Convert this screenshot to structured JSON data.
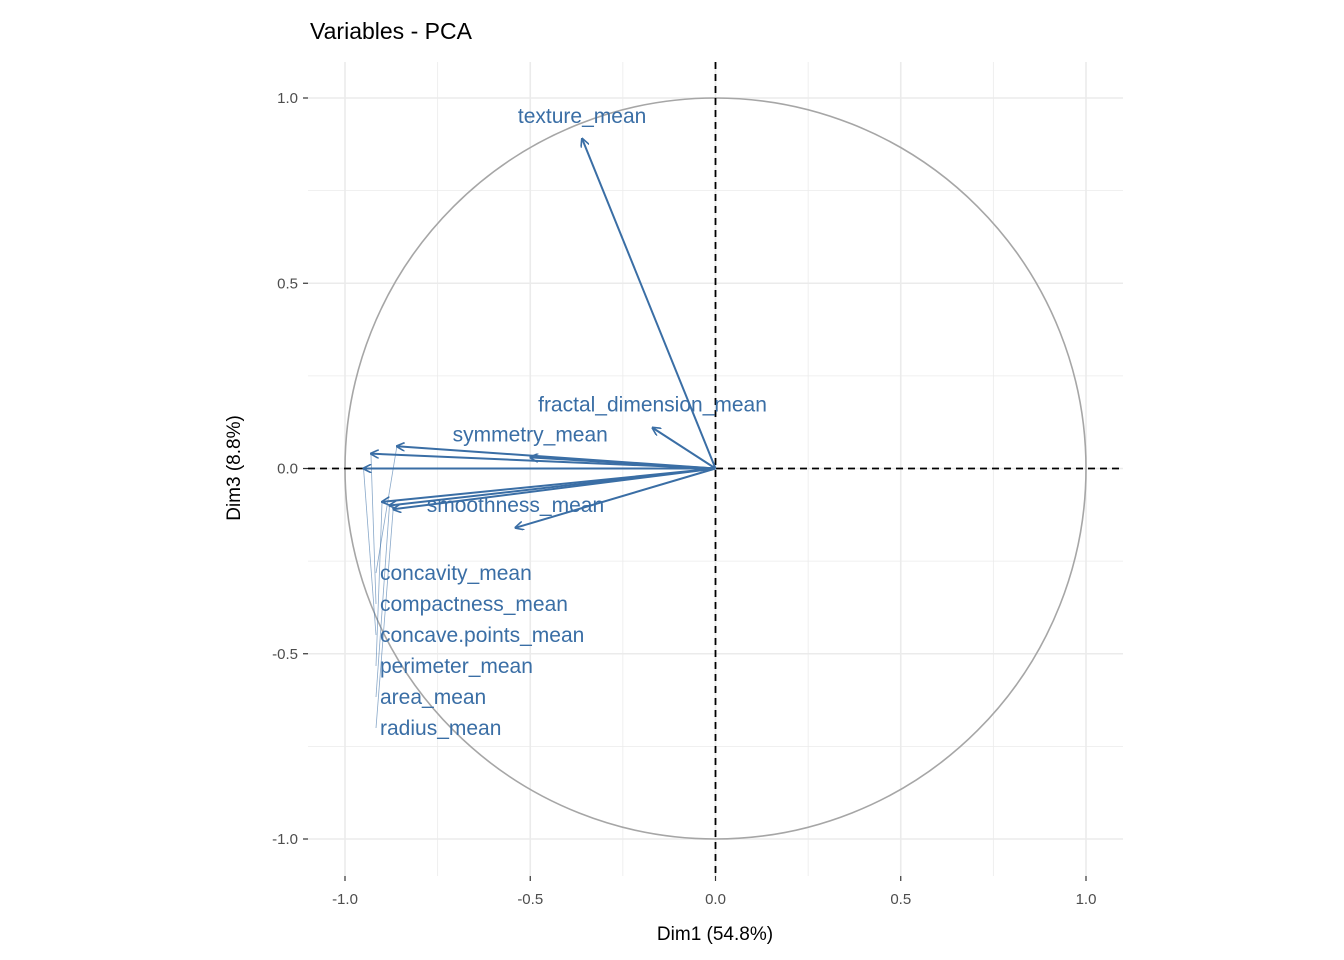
{
  "chart_data": {
    "type": "scatter",
    "subtype": "pca-variable-correlation-circle",
    "title": "Variables - PCA",
    "xlabel": "Dim1 (54.8%)",
    "ylabel": "Dim3 (8.8%)",
    "xlim": [
      -1.1,
      1.1
    ],
    "ylim": [
      -1.1,
      1.1
    ],
    "xticks": [
      -1.0,
      -0.5,
      0.0,
      0.5,
      1.0
    ],
    "xtick_labels": [
      "-1.0",
      "-0.5",
      "0.0",
      "0.5",
      "1.0"
    ],
    "yticks": [
      -1.0,
      -0.5,
      0.0,
      0.5,
      1.0
    ],
    "ytick_labels": [
      "-1.0",
      "-0.5",
      "0.0",
      "0.5",
      "1.0"
    ],
    "grid": true,
    "color": "#3a6ea5",
    "variables": [
      {
        "name": "texture_mean",
        "x": -0.36,
        "y": 0.89
      },
      {
        "name": "fractal_dimension_mean",
        "x": -0.17,
        "y": 0.11
      },
      {
        "name": "symmetry_mean",
        "x": -0.5,
        "y": 0.03
      },
      {
        "name": "compactness_mean",
        "x": -0.93,
        "y": 0.04
      },
      {
        "name": "concavity_mean",
        "x": -0.86,
        "y": 0.06
      },
      {
        "name": "concave.points_mean",
        "x": -0.95,
        "y": 0.0
      },
      {
        "name": "perimeter_mean",
        "x": -0.9,
        "y": -0.09
      },
      {
        "name": "area_mean",
        "x": -0.88,
        "y": -0.1
      },
      {
        "name": "radius_mean",
        "x": -0.87,
        "y": -0.11
      },
      {
        "name": "smoothness_mean",
        "x": -0.54,
        "y": -0.16
      }
    ]
  }
}
